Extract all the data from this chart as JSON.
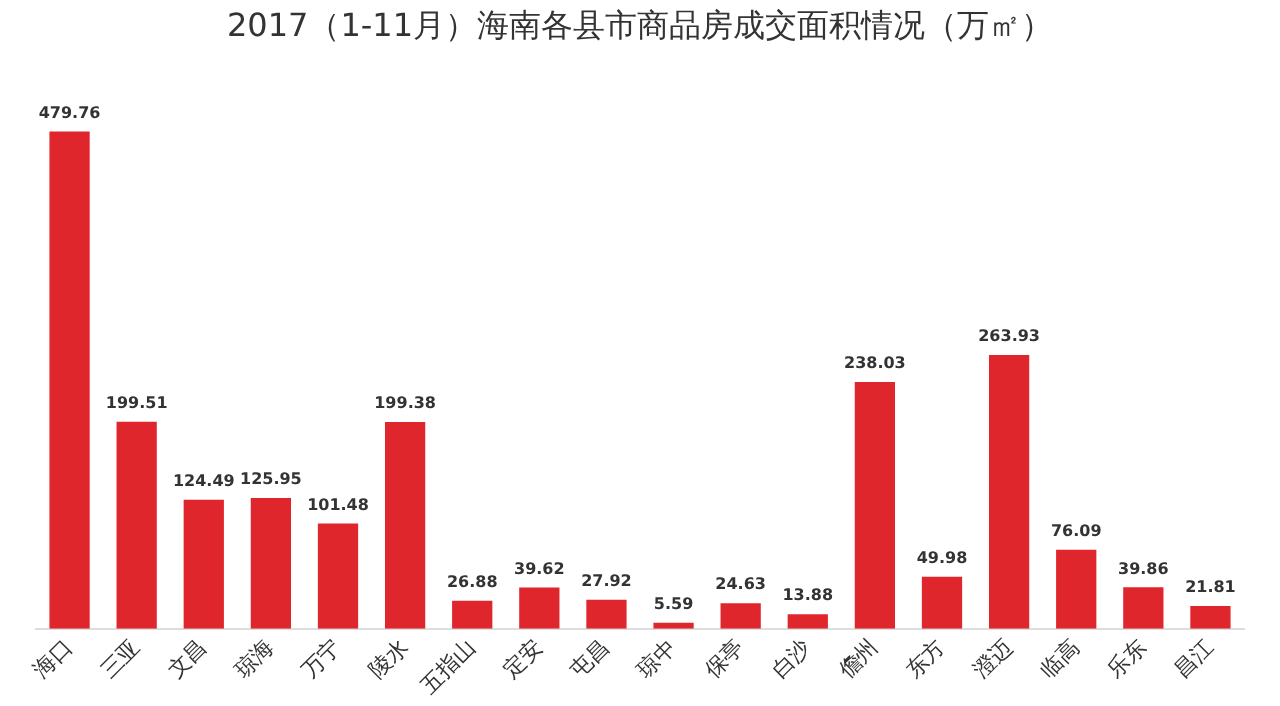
{
  "chart_data": {
    "type": "bar",
    "title": "2017（1-11月）海南各县市商品房成交面积情况（万㎡）",
    "categories": [
      "海口",
      "三亚",
      "文昌",
      "琼海",
      "万宁",
      "陵水",
      "五指山",
      "定安",
      "屯昌",
      "琼中",
      "保亭",
      "白沙",
      "儋州",
      "东方",
      "澄迈",
      "临高",
      "乐东",
      "昌江"
    ],
    "values": [
      479.76,
      199.51,
      124.49,
      125.95,
      101.48,
      199.38,
      26.88,
      39.62,
      27.92,
      5.59,
      24.63,
      13.88,
      238.03,
      49.98,
      263.93,
      76.09,
      39.86,
      21.81
    ],
    "color": "#e0262d",
    "data_labels": true,
    "grid": false,
    "legend": false
  }
}
